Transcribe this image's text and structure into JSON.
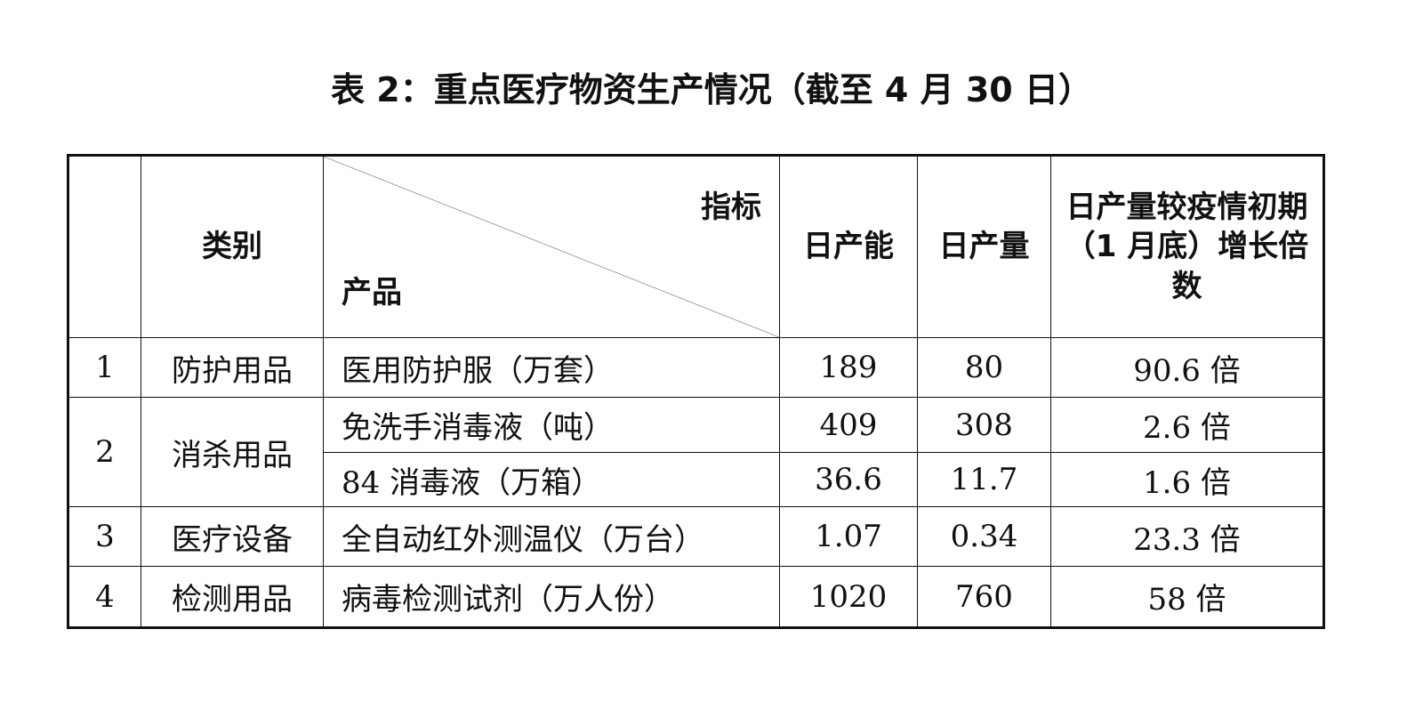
{
  "title": "表 2：重点医疗物资生产情况（截至 4 月 30 日）",
  "headers": {
    "category": "类别",
    "indicator": "指标",
    "product": "产品",
    "capacity": "日产能",
    "output": "日产量",
    "growth": "日产量较疫情初期（1 月底）增长倍数"
  },
  "rows": [
    {
      "no": "1",
      "category": "防护用品",
      "product": "医用防护服（万套）",
      "capacity": "189",
      "output": "80",
      "growth": "90.6 倍"
    },
    {
      "no": "2",
      "category": "消杀用品",
      "product": "免洗手消毒液（吨）",
      "capacity": "409",
      "output": "308",
      "growth": "2.6 倍"
    },
    {
      "product": "84 消毒液（万箱）",
      "capacity": "36.6",
      "output": "11.7",
      "growth": "1.6 倍"
    },
    {
      "no": "3",
      "category": "医疗设备",
      "product": "全自动红外测温仪（万台）",
      "capacity": "1.07",
      "output": "0.34",
      "growth": "23.3 倍"
    },
    {
      "no": "4",
      "category": "检测用品",
      "product": "病毒检测试剂（万人份）",
      "capacity": "1020",
      "output": "760",
      "growth": "58 倍"
    }
  ]
}
